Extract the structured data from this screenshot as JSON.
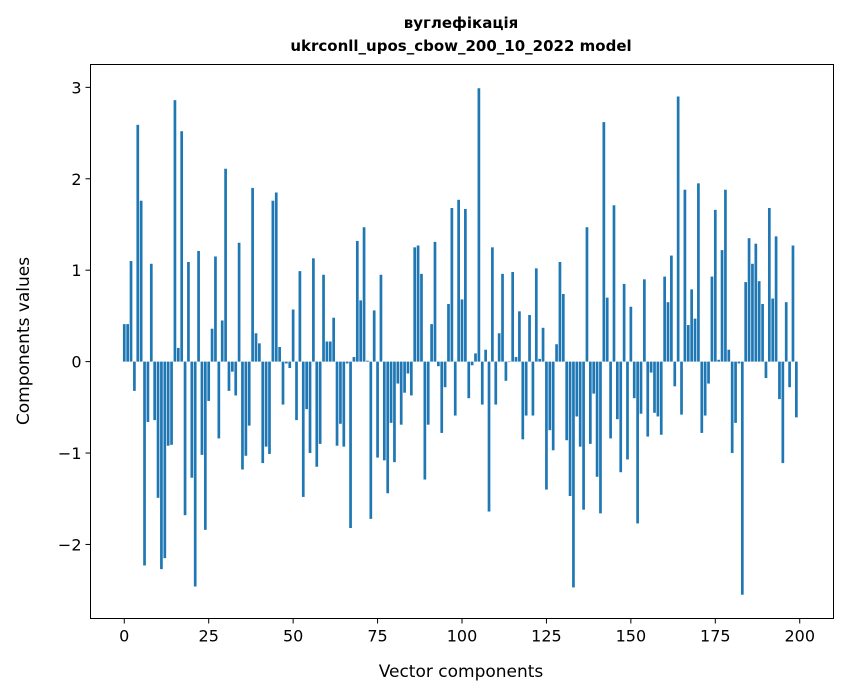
{
  "chart_data": {
    "type": "bar",
    "title": "вуглефікація",
    "subtitle": "ukrconll_upos_cbow_200_10_2022 model",
    "xlabel": "Vector components",
    "ylabel": "Components values",
    "xlim": [
      -10,
      210
    ],
    "ylim": [
      -2.81,
      3.25
    ],
    "xticks": [
      0,
      25,
      50,
      75,
      100,
      125,
      150,
      175,
      200
    ],
    "yticks": [
      -2,
      -1,
      0,
      1,
      2,
      3
    ],
    "xtick_labels": [
      "0",
      "25",
      "50",
      "75",
      "100",
      "125",
      "150",
      "175",
      "200"
    ],
    "ytick_labels": [
      "−2",
      "−1",
      "0",
      "1",
      "2",
      "3"
    ],
    "grid": false,
    "bar_color": "#1f77b4",
    "values": [
      0.41,
      0.41,
      1.1,
      -0.32,
      2.59,
      1.76,
      -2.23,
      -0.66,
      1.07,
      -0.64,
      -1.49,
      -2.27,
      -2.15,
      -0.92,
      -0.91,
      2.86,
      0.15,
      2.52,
      -1.68,
      1.09,
      -1.27,
      -2.46,
      1.21,
      -1.02,
      -1.84,
      -0.43,
      0.36,
      1.15,
      -0.84,
      0.45,
      2.11,
      -0.32,
      -0.11,
      -0.37,
      1.3,
      -1.18,
      -1.03,
      -0.7,
      1.9,
      0.31,
      0.2,
      -1.11,
      -0.93,
      -1.01,
      1.76,
      1.85,
      0.16,
      -0.47,
      -0.02,
      -0.07,
      0.57,
      -0.64,
      0.99,
      -1.48,
      -0.52,
      -1.0,
      1.13,
      -1.15,
      -0.9,
      0.95,
      0.22,
      0.22,
      0.48,
      -0.92,
      -0.68,
      -0.93,
      -0.02,
      -1.82,
      0.05,
      1.32,
      0.67,
      1.47,
      0.01,
      -1.72,
      0.56,
      -1.05,
      0.95,
      -1.08,
      -1.44,
      -0.67,
      -1.1,
      -0.24,
      -0.69,
      -0.34,
      -0.13,
      -0.37,
      1.25,
      1.27,
      0.96,
      -1.29,
      -0.69,
      0.41,
      1.31,
      -0.05,
      -0.78,
      -0.28,
      0.63,
      1.68,
      -0.59,
      1.77,
      0.68,
      1.67,
      -0.4,
      -0.04,
      0.09,
      2.99,
      -0.47,
      0.13,
      -1.64,
      1.25,
      -0.47,
      0.31,
      0.96,
      -0.21,
      0.0,
      0.98,
      0.05,
      0.55,
      -0.85,
      -0.59,
      0.51,
      -0.59,
      1.02,
      0.03,
      0.37,
      -1.4,
      -0.75,
      -0.97,
      0.19,
      1.09,
      0.74,
      -0.86,
      -1.47,
      -2.47,
      -0.6,
      -0.93,
      -1.62,
      1.47,
      -0.9,
      -0.35,
      -1.26,
      -1.66,
      2.62,
      0.7,
      -0.84,
      1.71,
      -0.63,
      -1.21,
      0.85,
      -1.07,
      0.6,
      -0.4,
      -1.77,
      -0.57,
      0.9,
      -0.82,
      -0.12,
      -0.56,
      -0.6,
      -0.8,
      0.93,
      0.65,
      1.16,
      -0.27,
      2.9,
      -0.58,
      1.88,
      0.4,
      0.79,
      0.47,
      1.95,
      -0.78,
      -0.59,
      -0.24,
      0.93,
      1.66,
      0.02,
      1.22,
      1.88,
      0.13,
      -1.0,
      -0.67,
      -0.02,
      -2.55,
      0.87,
      1.35,
      1.07,
      1.29,
      0.88,
      0.63,
      -0.18,
      1.68,
      0.69,
      1.37,
      -0.41,
      -1.11,
      0.65,
      -0.28,
      1.27,
      -0.61
    ]
  }
}
